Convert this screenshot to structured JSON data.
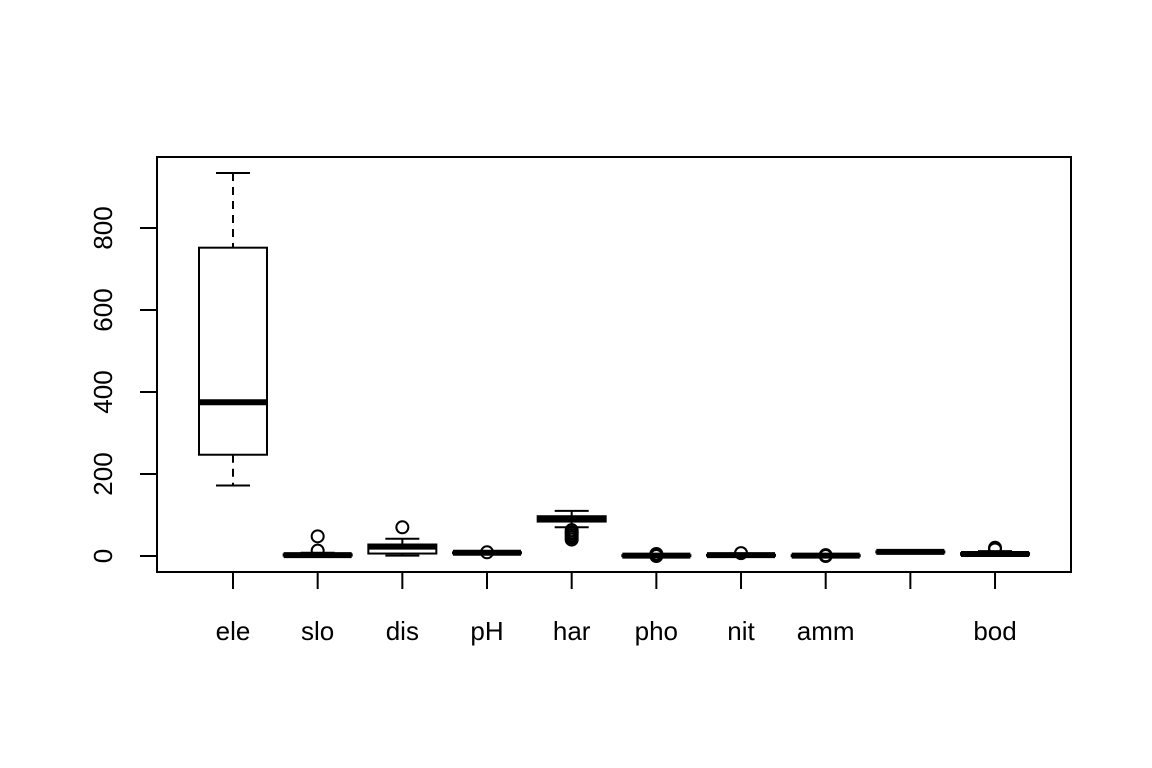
{
  "chart_data": {
    "type": "boxplot",
    "title": "",
    "xlabel": "",
    "ylabel": "",
    "ylim": [
      -40,
      1000
    ],
    "yticks": [
      0,
      200,
      400,
      600,
      800
    ],
    "ytick_labels": [
      "0",
      "200",
      "400",
      "600",
      "800"
    ],
    "grid": false,
    "categories": [
      "ele",
      "slo",
      "dis",
      "pH",
      "har",
      "pho",
      "nit",
      "amm",
      "",
      "bod"
    ],
    "series": [
      {
        "label": "ele",
        "min": 172,
        "q1": 247,
        "median": 375,
        "q3": 752,
        "max": 934,
        "outliers": []
      },
      {
        "label": "slo",
        "min": 0,
        "q1": 1,
        "median": 2,
        "q3": 4,
        "max": 8,
        "outliers": [
          48,
          13
        ]
      },
      {
        "label": "dis",
        "min": 1,
        "q1": 6,
        "median": 23,
        "q3": 28,
        "max": 42,
        "outliers": [
          70
        ]
      },
      {
        "label": "pH",
        "min": 6,
        "q1": 7,
        "median": 8,
        "q3": 9,
        "max": 10,
        "outliers": [
          9
        ]
      },
      {
        "label": "har",
        "min": 70,
        "q1": 84,
        "median": 89,
        "q3": 97,
        "max": 110,
        "outliers": [
          63,
          58,
          55,
          50,
          45,
          40
        ]
      },
      {
        "label": "pho",
        "min": 0,
        "q1": 0,
        "median": 1,
        "q3": 2,
        "max": 4,
        "outliers": [
          5,
          2,
          0
        ]
      },
      {
        "label": "nit",
        "min": 0,
        "q1": 1,
        "median": 2,
        "q3": 3,
        "max": 5,
        "outliers": [
          7
        ]
      },
      {
        "label": "amm",
        "min": 0,
        "q1": 0,
        "median": 1,
        "q3": 2,
        "max": 3,
        "outliers": [
          2,
          0
        ]
      },
      {
        "label": "",
        "min": 6,
        "q1": 9,
        "median": 10,
        "q3": 11,
        "max": 13,
        "outliers": []
      },
      {
        "label": "bod",
        "min": 1,
        "q1": 3,
        "median": 5,
        "q3": 7,
        "max": 12,
        "outliers": [
          20,
          16
        ]
      }
    ]
  }
}
